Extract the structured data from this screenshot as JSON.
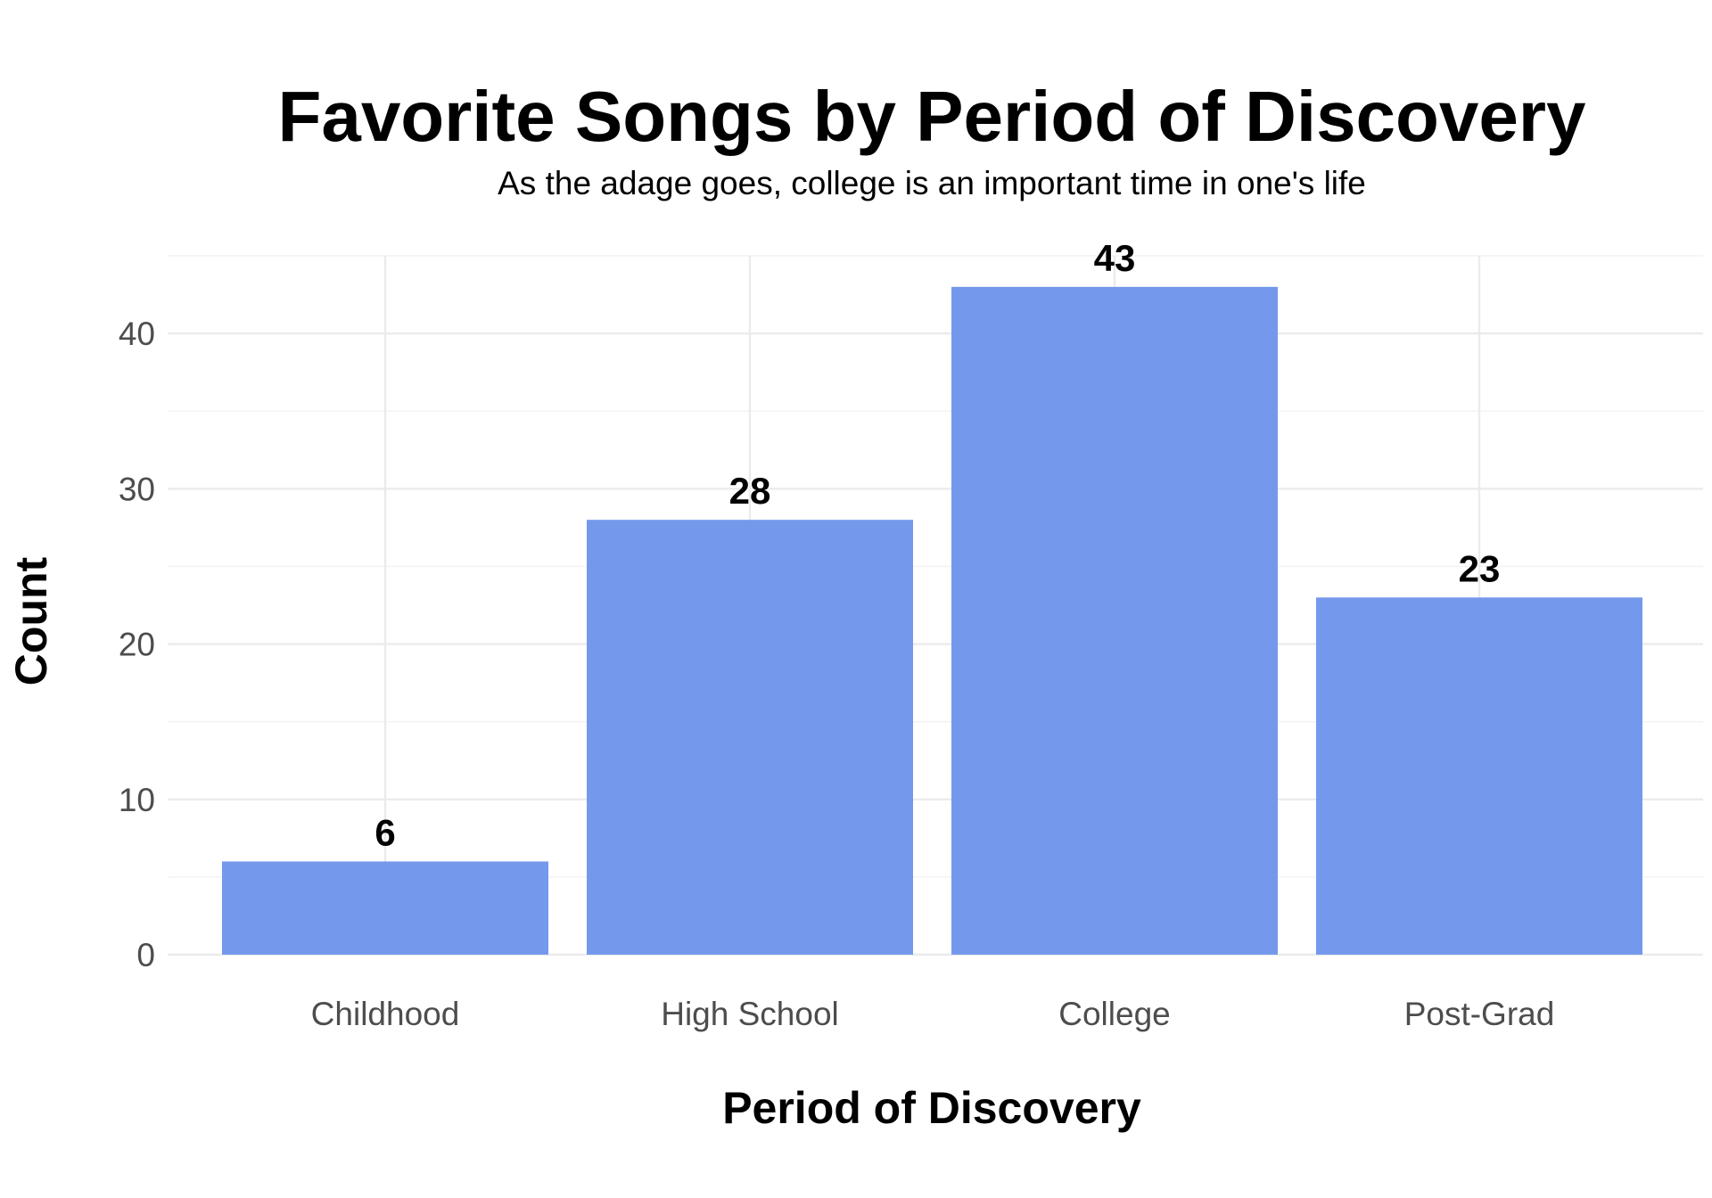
{
  "chart_data": {
    "type": "bar",
    "title": "Favorite Songs by Period of Discovery",
    "subtitle": "As the adage goes, college is an important time in one's life",
    "xlabel": "Period of Discovery",
    "ylabel": "Count",
    "categories": [
      "Childhood",
      "High School",
      "College",
      "Post-Grad"
    ],
    "values": [
      6,
      28,
      43,
      23
    ],
    "data_labels": [
      "6",
      "28",
      "43",
      "23"
    ],
    "ylim": [
      0,
      45
    ],
    "y_ticks": [
      0,
      10,
      20,
      30,
      40
    ],
    "y_tick_labels": [
      "0",
      "10",
      "20",
      "30",
      "40"
    ],
    "bar_color": "#6d93eb",
    "grid": true,
    "legend": "none"
  }
}
